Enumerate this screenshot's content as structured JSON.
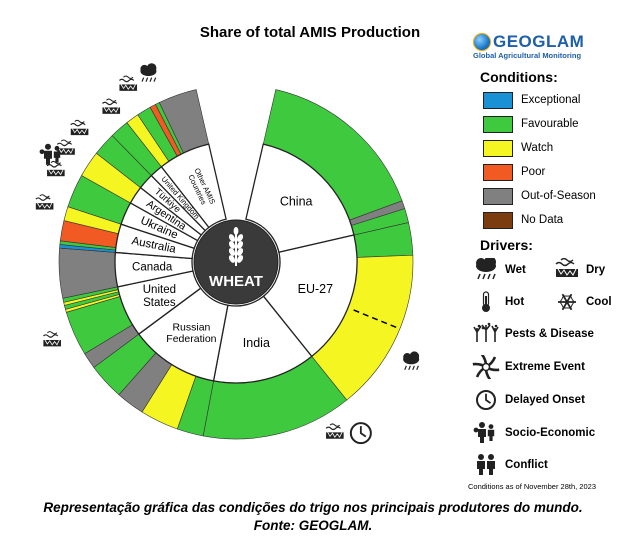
{
  "colors": {
    "Exceptional": "#1a91d4",
    "Favourable": "#3ec93e",
    "Watch": "#f5f521",
    "Poor": "#f25a23",
    "Out-of-Season": "#808080",
    "No Data": "#7b3c10"
  },
  "chart_data": {
    "type": "pie",
    "title": "Share of total AMIS Production",
    "center_label": "WHEAT",
    "countries": [
      {
        "name": "China",
        "share": 19.2
      },
      {
        "name": "EU-27",
        "share": 19.2
      },
      {
        "name": "India",
        "share": 14.8
      },
      {
        "name": "Russian Federation",
        "share": 12.8
      },
      {
        "name": "United States",
        "share": 7.4
      },
      {
        "name": "Canada",
        "share": 4.9
      },
      {
        "name": "Australia",
        "share": 4.1
      },
      {
        "name": "Ukraine",
        "share": 3.3
      },
      {
        "name": "Argentina",
        "share": 2.6
      },
      {
        "name": "Türkiye",
        "share": 2.3
      },
      {
        "name": "United Kingdom",
        "share": 1.9
      },
      {
        "name": "Other AMIS Countries",
        "share": 7.5
      }
    ],
    "conditions": [
      {
        "country": "China",
        "segments": [
          [
            "Favourable",
            17.0
          ],
          [
            "Out-of-Season",
            0.8
          ],
          [
            "Favourable",
            1.4
          ]
        ]
      },
      {
        "country": "EU-27",
        "segments": [
          [
            "Favourable",
            3.2
          ],
          [
            "Watch",
            16.0
          ]
        ]
      },
      {
        "country": "India",
        "segments": [
          [
            "Favourable",
            14.8
          ]
        ]
      },
      {
        "country": "Russian Federation",
        "segments": [
          [
            "Favourable",
            2.6
          ],
          [
            "Watch",
            3.8
          ],
          [
            "Out-of-Season",
            2.8
          ],
          [
            "Favourable",
            3.6
          ]
        ]
      },
      {
        "country": "United States",
        "segments": [
          [
            "Out-of-Season",
            1.6
          ],
          [
            "Favourable",
            4.4
          ],
          [
            "Watch",
            0.3
          ],
          [
            "Favourable",
            0.4
          ],
          [
            "Watch",
            0.3
          ],
          [
            "Favourable",
            0.4
          ]
        ]
      },
      {
        "country": "Canada",
        "segments": [
          [
            "Out-of-Season",
            4.9
          ]
        ]
      },
      {
        "country": "Australia",
        "segments": [
          [
            "Exceptional",
            0.35
          ],
          [
            "Favourable",
            0.35
          ],
          [
            "Poor",
            2.0
          ],
          [
            "Watch",
            1.4
          ]
        ]
      },
      {
        "country": "Ukraine",
        "segments": [
          [
            "Favourable",
            3.3
          ]
        ]
      },
      {
        "country": "Argentina",
        "segments": [
          [
            "Watch",
            2.6
          ]
        ]
      },
      {
        "country": "Türkiye",
        "segments": [
          [
            "Favourable",
            2.3
          ]
        ]
      },
      {
        "country": "United Kingdom",
        "segments": [
          [
            "Favourable",
            1.9
          ]
        ]
      },
      {
        "country": "Other AMIS Countries",
        "segments": [
          [
            "Watch",
            1.3
          ],
          [
            "Favourable",
            1.4
          ],
          [
            "Poor",
            0.6
          ],
          [
            "Favourable",
            0.4
          ],
          [
            "Out-of-Season",
            3.8
          ]
        ]
      }
    ],
    "driver_markers": [
      {
        "driver": "Dry",
        "at": 70.0
      },
      {
        "driver": "Dry",
        "at": 92.2
      },
      {
        "driver": "Dry",
        "at": 82.0
      },
      {
        "driver": "Dry",
        "at": 85.0
      },
      {
        "driver": "Dry",
        "at": 87.0
      },
      {
        "driver": "Dry",
        "at": 89.0
      },
      {
        "driver": "Dry",
        "at": 94.5
      },
      {
        "driver": "Wet",
        "at": 96.4
      },
      {
        "driver": "Wet",
        "at": 32.0
      },
      {
        "driver": "Socio-Economic",
        "at": 86.0
      },
      {
        "driver": "Delayed Onset",
        "at": 40.0
      }
    ]
  },
  "legend": {
    "conditions_heading": "Conditions:",
    "conditions": [
      "Exceptional",
      "Favourable",
      "Watch",
      "Poor",
      "Out-of-Season",
      "No Data"
    ],
    "drivers_heading": "Drivers:",
    "drivers": [
      {
        "label": "Wet",
        "icon": "wet-icon"
      },
      {
        "label": "Dry",
        "icon": "dry-icon"
      },
      {
        "label": "Hot",
        "icon": "hot-icon"
      },
      {
        "label": "Cool",
        "icon": "cool-icon"
      },
      {
        "label": "Pests & Disease",
        "icon": "pests-icon"
      },
      {
        "label": "Extreme Event",
        "icon": "extreme-event-icon"
      },
      {
        "label": "Delayed Onset",
        "icon": "delayed-onset-icon"
      },
      {
        "label": "Socio-Economic",
        "icon": "socio-economic-icon"
      },
      {
        "label": "Conflict",
        "icon": "conflict-icon"
      }
    ]
  },
  "logo": {
    "name": "GEOGLAM",
    "subtitle": "Global Agricultural Monitoring"
  },
  "as_of": "Conditions as of November 28th, 2023",
  "caption": {
    "line1": "Representação gráfica das condições do trigo nos principais produtores do mundo.",
    "line2": "Fonte: GEOGLAM."
  }
}
